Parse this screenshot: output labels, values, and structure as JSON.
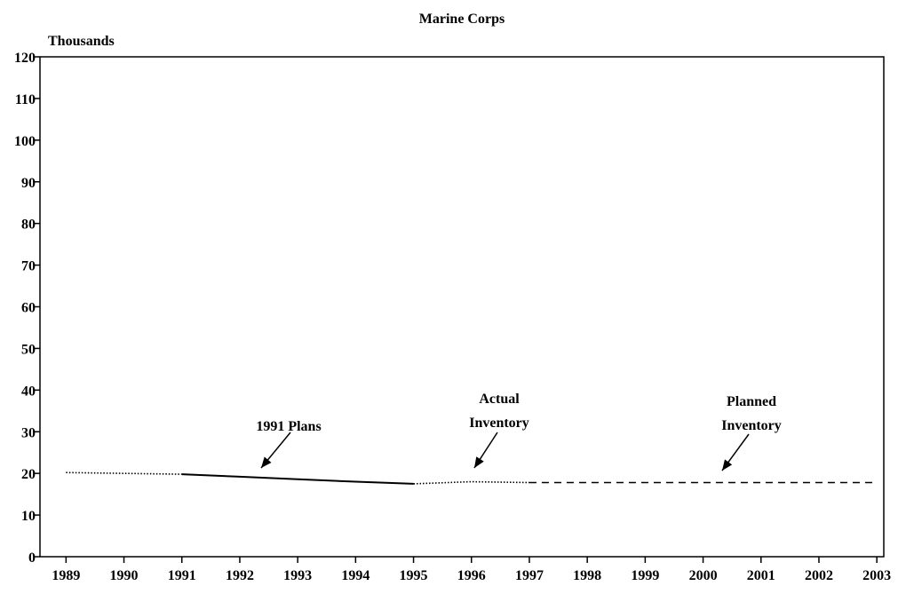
{
  "chart_data": {
    "type": "line",
    "title": "Marine Corps",
    "y_label": "Thousands",
    "xlim": [
      1988.55,
      2003.12
    ],
    "xticks": [
      1989,
      1990,
      1991,
      1992,
      1993,
      1994,
      1995,
      1996,
      1997,
      1998,
      1999,
      2000,
      2001,
      2002,
      2003
    ],
    "ylim": [
      0,
      120
    ],
    "yticks": [
      0,
      10,
      20,
      30,
      40,
      50,
      60,
      70,
      80,
      90,
      100,
      110,
      120
    ],
    "series": [
      {
        "color": "#000000",
        "style": "dotted",
        "x": [
          1989,
          1990,
          1991,
          1992,
          1993,
          1994,
          1995,
          1996,
          1997
        ],
        "values": [
          20.2,
          20.0,
          19.8,
          null,
          null,
          null,
          17.5,
          18.0,
          17.8
        ]
      },
      {
        "color": "#000000",
        "style": "solid",
        "x": [
          1991,
          1992,
          1993,
          1994,
          1995
        ],
        "values": [
          19.8,
          19.2,
          18.6,
          18.0,
          17.5
        ]
      },
      {
        "color": "#000000",
        "style": "dashed",
        "x": [
          1997,
          1998,
          1999,
          2000,
          2001,
          2002,
          2003
        ],
        "values": [
          17.8,
          17.8,
          17.8,
          17.8,
          17.8,
          17.8,
          17.8
        ]
      }
    ],
    "annotations": [
      {
        "lines": [
          "1991 Plans"
        ]
      },
      {
        "lines": [
          "Actual",
          "Inventory"
        ]
      },
      {
        "lines": [
          "Planned",
          "Inventory"
        ]
      }
    ]
  }
}
